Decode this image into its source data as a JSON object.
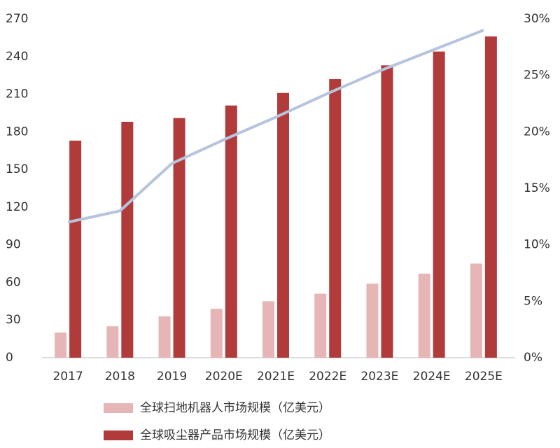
{
  "chart_data": {
    "type": "bar",
    "categories": [
      "2017",
      "2018",
      "2019",
      "2020E",
      "2021E",
      "2022E",
      "2023E",
      "2024E",
      "2025E"
    ],
    "series": [
      {
        "name": "全球扫地机器人市场规模（亿美元）",
        "color": "#e6b5b5",
        "values": [
          20,
          25,
          33,
          39,
          45,
          51,
          59,
          67,
          75
        ]
      },
      {
        "name": "全球吸尘器产品市场规模（亿美元）",
        "color": "#b13b3b",
        "values": [
          173,
          188,
          191,
          201,
          211,
          222,
          233,
          244,
          256
        ]
      },
      {
        "type": "line",
        "axis": "y2",
        "color": "#b6c4dc",
        "values": [
          12,
          13,
          17.2,
          19.3,
          21.3,
          23.4,
          25.4,
          27.2,
          29
        ]
      }
    ],
    "ylim": [
      0,
      270
    ],
    "yticks": [
      0,
      30,
      60,
      90,
      120,
      150,
      180,
      210,
      240,
      270
    ],
    "y2lim": [
      0,
      30
    ],
    "y2ticks": [
      {
        "value": 0,
        "label": "0%"
      },
      {
        "value": 5,
        "label": "5%"
      },
      {
        "value": 10,
        "label": "10%"
      },
      {
        "value": 15,
        "label": "15%"
      },
      {
        "value": 20,
        "label": "20%"
      },
      {
        "value": 25,
        "label": "25%"
      },
      {
        "value": 30,
        "label": "30%"
      }
    ],
    "grid": false,
    "legend": "bottom"
  }
}
